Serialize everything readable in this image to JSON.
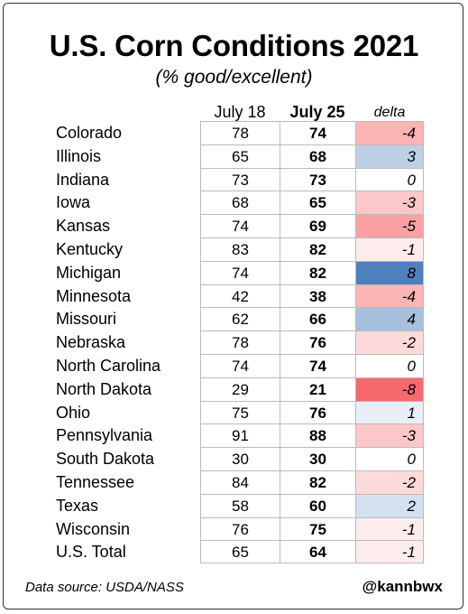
{
  "chart_data": {
    "type": "table",
    "title": "U.S. Corn Conditions 2021",
    "subtitle": "(% good/excellent)",
    "columns": [
      "July 18",
      "July 25",
      "delta"
    ],
    "rows": [
      {
        "state": "Colorado",
        "jul18": 78,
        "jul25": 74,
        "delta": -4
      },
      {
        "state": "Illinois",
        "jul18": 65,
        "jul25": 68,
        "delta": 3
      },
      {
        "state": "Indiana",
        "jul18": 73,
        "jul25": 73,
        "delta": 0
      },
      {
        "state": "Iowa",
        "jul18": 68,
        "jul25": 65,
        "delta": -3
      },
      {
        "state": "Kansas",
        "jul18": 74,
        "jul25": 69,
        "delta": -5
      },
      {
        "state": "Kentucky",
        "jul18": 83,
        "jul25": 82,
        "delta": -1
      },
      {
        "state": "Michigan",
        "jul18": 74,
        "jul25": 82,
        "delta": 8
      },
      {
        "state": "Minnesota",
        "jul18": 42,
        "jul25": 38,
        "delta": -4
      },
      {
        "state": "Missouri",
        "jul18": 62,
        "jul25": 66,
        "delta": 4
      },
      {
        "state": "Nebraska",
        "jul18": 78,
        "jul25": 76,
        "delta": -2
      },
      {
        "state": "North Carolina",
        "jul18": 74,
        "jul25": 74,
        "delta": 0
      },
      {
        "state": "North Dakota",
        "jul18": 29,
        "jul25": 21,
        "delta": -8
      },
      {
        "state": "Ohio",
        "jul18": 75,
        "jul25": 76,
        "delta": 1
      },
      {
        "state": "Pennsylvania",
        "jul18": 91,
        "jul25": 88,
        "delta": -3
      },
      {
        "state": "South Dakota",
        "jul18": 30,
        "jul25": 30,
        "delta": 0
      },
      {
        "state": "Tennessee",
        "jul18": 84,
        "jul25": 82,
        "delta": -2
      },
      {
        "state": "Texas",
        "jul18": 58,
        "jul25": 60,
        "delta": 2
      },
      {
        "state": "Wisconsin",
        "jul18": 76,
        "jul25": 75,
        "delta": -1
      },
      {
        "state": "U.S. Total",
        "jul18": 65,
        "jul25": 64,
        "delta": -1
      }
    ],
    "colors": {
      "negative": "#f8696b",
      "positive": "#4f81bd",
      "neutral": "#ffffff"
    }
  },
  "footer": {
    "source": "Data source: USDA/NASS",
    "handle": "@kannbwx"
  }
}
